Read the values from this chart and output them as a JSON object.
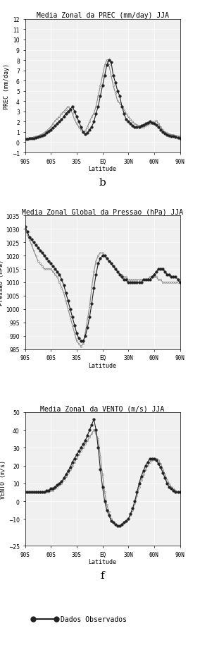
{
  "title1": "Media Zonal da PREC (mm/day) JJA",
  "title2": "Media Zonal Global da Pressao (hPa) JJA",
  "title3": "Media Zonal da VENTO (m/s) JJA",
  "xlabel": "Latitude",
  "ylabel1": "PREC (mm/day)",
  "ylabel2": "Pressao (hPa)",
  "ylabel3": "VENTO (m/s)",
  "label_b": "b",
  "label_f": "f",
  "legend_label": "Dados Observados",
  "lat": [
    -90,
    -87.5,
    -85,
    -82.5,
    -80,
    -77.5,
    -75,
    -72.5,
    -70,
    -67.5,
    -65,
    -62.5,
    -60,
    -57.5,
    -55,
    -52.5,
    -50,
    -47.5,
    -45,
    -42.5,
    -40,
    -37.5,
    -35,
    -32.5,
    -30,
    -27.5,
    -25,
    -22.5,
    -20,
    -17.5,
    -15,
    -12.5,
    -10,
    -7.5,
    -5,
    -2.5,
    0,
    2.5,
    5,
    7.5,
    10,
    12.5,
    15,
    17.5,
    20,
    22.5,
    25,
    27.5,
    30,
    32.5,
    35,
    37.5,
    40,
    42.5,
    45,
    47.5,
    50,
    52.5,
    55,
    57.5,
    60,
    62.5,
    65,
    67.5,
    70,
    72.5,
    75,
    77.5,
    80,
    82.5,
    85,
    87.5,
    90
  ],
  "prec_model": [
    0.35,
    0.38,
    0.42,
    0.45,
    0.5,
    0.55,
    0.6,
    0.7,
    0.8,
    0.95,
    1.1,
    1.3,
    1.5,
    1.8,
    2.1,
    2.3,
    2.5,
    2.8,
    3.0,
    3.2,
    3.5,
    3.2,
    2.8,
    2.2,
    1.8,
    1.5,
    1.2,
    1.0,
    1.1,
    1.5,
    2.0,
    2.5,
    2.8,
    3.5,
    4.5,
    5.5,
    6.5,
    7.5,
    8.0,
    7.5,
    6.5,
    5.5,
    4.8,
    4.0,
    3.8,
    3.5,
    3.2,
    2.8,
    2.5,
    2.2,
    2.0,
    1.8,
    1.7,
    1.6,
    1.5,
    1.5,
    1.6,
    1.7,
    1.8,
    1.9,
    2.0,
    2.1,
    1.8,
    1.5,
    1.2,
    1.0,
    0.9,
    0.8,
    0.75,
    0.7,
    0.65,
    0.6,
    0.55
  ],
  "prec_obs": [
    0.3,
    0.32,
    0.35,
    0.38,
    0.4,
    0.45,
    0.5,
    0.55,
    0.65,
    0.75,
    0.9,
    1.05,
    1.2,
    1.4,
    1.6,
    1.8,
    2.0,
    2.2,
    2.5,
    2.8,
    3.0,
    3.2,
    3.5,
    3.0,
    2.5,
    2.0,
    1.5,
    1.0,
    0.8,
    0.9,
    1.2,
    1.5,
    2.0,
    2.8,
    3.5,
    4.5,
    5.5,
    6.5,
    7.5,
    8.0,
    7.8,
    6.5,
    5.8,
    5.0,
    4.5,
    3.5,
    2.8,
    2.2,
    2.0,
    1.8,
    1.6,
    1.5,
    1.5,
    1.5,
    1.6,
    1.7,
    1.8,
    1.9,
    2.0,
    1.9,
    1.8,
    1.7,
    1.5,
    1.2,
    1.0,
    0.85,
    0.75,
    0.65,
    0.6,
    0.55,
    0.5,
    0.45,
    0.4
  ],
  "pres_model": [
    1030,
    1028,
    1026,
    1024,
    1022,
    1020,
    1018,
    1017,
    1016,
    1015,
    1015,
    1015,
    1015,
    1014,
    1013,
    1012,
    1010,
    1008,
    1006,
    1003,
    1000,
    997,
    994,
    991,
    988,
    987,
    986,
    987,
    991,
    996,
    1001,
    1008,
    1014,
    1018,
    1020,
    1021,
    1021,
    1020,
    1019,
    1018,
    1017,
    1016,
    1015,
    1014,
    1013,
    1013,
    1012,
    1012,
    1011,
    1011,
    1011,
    1011,
    1011,
    1011,
    1011,
    1011,
    1011,
    1011,
    1012,
    1012,
    1012,
    1012,
    1011,
    1011,
    1010,
    1010,
    1010,
    1010,
    1010,
    1010,
    1010,
    1010,
    1010
  ],
  "pres_obs": [
    1031,
    1029,
    1027,
    1026,
    1025,
    1024,
    1023,
    1022,
    1021,
    1020,
    1019,
    1018,
    1017,
    1016,
    1015,
    1014,
    1013,
    1011,
    1009,
    1006,
    1003,
    1000,
    997,
    994,
    991,
    989,
    988,
    988,
    990,
    993,
    997,
    1002,
    1008,
    1013,
    1017,
    1019,
    1020,
    1020,
    1019,
    1018,
    1017,
    1016,
    1015,
    1014,
    1013,
    1012,
    1011,
    1011,
    1010,
    1010,
    1010,
    1010,
    1010,
    1010,
    1010,
    1011,
    1011,
    1011,
    1011,
    1012,
    1013,
    1014,
    1015,
    1015,
    1015,
    1014,
    1013,
    1013,
    1012,
    1012,
    1012,
    1011,
    1010
  ],
  "wind_model": [
    5,
    5,
    5,
    5,
    5,
    5,
    5,
    5,
    5,
    5,
    5,
    5,
    6,
    6,
    7,
    8,
    9,
    10,
    12,
    14,
    16,
    18,
    20,
    22,
    24,
    26,
    28,
    30,
    32,
    34,
    36,
    38,
    40,
    38,
    35,
    25,
    15,
    5,
    -2,
    -6,
    -10,
    -12,
    -13,
    -14,
    -14,
    -13,
    -12,
    -11,
    -10,
    -8,
    -5,
    -1,
    3,
    8,
    12,
    15,
    18,
    20,
    22,
    23,
    24,
    24,
    23,
    21,
    18,
    15,
    12,
    10,
    8,
    7,
    6,
    5,
    5
  ],
  "wind_obs": [
    5,
    5,
    5,
    5,
    5,
    5,
    5,
    5,
    5,
    5,
    6,
    6,
    7,
    7,
    8,
    9,
    10,
    11,
    13,
    15,
    17,
    19,
    22,
    24,
    26,
    28,
    30,
    32,
    34,
    37,
    40,
    43,
    46,
    40,
    30,
    18,
    8,
    0,
    -5,
    -8,
    -11,
    -12,
    -13,
    -14,
    -14,
    -13,
    -12,
    -11,
    -10,
    -7,
    -4,
    0,
    5,
    10,
    14,
    17,
    20,
    22,
    24,
    24,
    24,
    23,
    21,
    19,
    16,
    13,
    10,
    8,
    7,
    6,
    5,
    5,
    5
  ],
  "line_color_model": "#888888",
  "line_color_obs": "#222222",
  "bg_color": "#f0f0f0",
  "grid_color": "#ffffff",
  "title_fontsize": 7,
  "label_fontsize": 6,
  "tick_fontsize": 5.5,
  "legend_fontsize": 7,
  "xticks": [
    -90,
    -60,
    -30,
    0,
    30,
    60,
    90
  ],
  "xticklabels": [
    "90S",
    "60S",
    "30S",
    "EQ",
    "30N",
    "60N",
    "90N"
  ],
  "ylim_prec": [
    -1,
    12
  ],
  "yticks_prec": [
    -1,
    0,
    1,
    2,
    3,
    4,
    5,
    6,
    7,
    8,
    9,
    10,
    11,
    12
  ],
  "ylim_pres": [
    985,
    1035
  ],
  "yticks_pres": [
    985,
    990,
    995,
    1000,
    1005,
    1010,
    1015,
    1020,
    1025,
    1030,
    1035
  ],
  "ylim_wind": [
    -25,
    50
  ],
  "yticks_wind": [
    -25,
    -10,
    0,
    10,
    20,
    30,
    40,
    50
  ]
}
